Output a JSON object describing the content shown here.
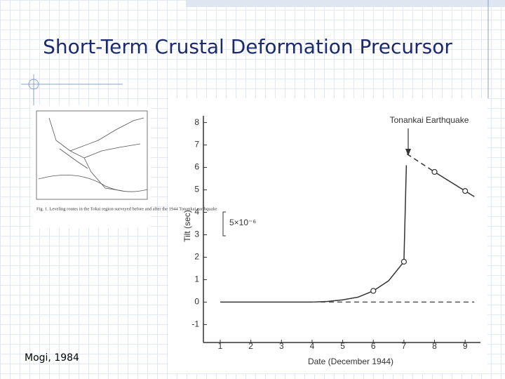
{
  "slide_title": "Short-Term Crustal Deformation Precursor",
  "citation": "Mogi, 1984",
  "inset_caption": "Fig. 1. Leveling routes in the Tokai region surveyed before and after the 1944 Tonankai earthquake",
  "chart_data": {
    "type": "line",
    "x_label": "Date (December 1944)",
    "y_label": "Tilt (sec)",
    "annotation": "Tonankai Earthquake",
    "scale_label": "5×10⁻⁶",
    "x": [
      1,
      3,
      4,
      4.5,
      5,
      5.5,
      6,
      6.5,
      7,
      7.08,
      7.1,
      8,
      9,
      9.3
    ],
    "series": [
      {
        "color": "#333333",
        "dashed": false,
        "marker": false,
        "values": [
          0,
          0,
          0,
          0.03,
          0.1,
          0.22,
          0.5,
          0.95,
          1.8,
          6.1,
          null,
          5.8,
          4.95,
          4.7
        ]
      },
      {
        "color": "#333333",
        "dashed": true,
        "marker": false,
        "values": [
          null,
          null,
          null,
          null,
          null,
          null,
          null,
          null,
          null,
          null,
          6.6,
          5.8,
          null,
          null
        ]
      },
      {
        "color": "#555555",
        "dashed": true,
        "marker": false,
        "values": [
          null,
          null,
          0,
          0,
          0,
          0,
          0,
          0,
          0,
          0,
          0,
          0,
          0,
          0
        ]
      },
      {
        "color": "#333333",
        "dashed": false,
        "marker": true,
        "values": [
          null,
          null,
          null,
          null,
          null,
          null,
          0.5,
          null,
          1.8,
          null,
          null,
          5.8,
          4.95,
          null
        ]
      }
    ],
    "xlim": [
      0.45,
      9.5
    ],
    "xticks": [
      1,
      2,
      3,
      4,
      5,
      6,
      7,
      8,
      9
    ],
    "ylim": [
      -1.8,
      8.3
    ],
    "yticks": [
      -1,
      0,
      1,
      2,
      3,
      4,
      5,
      6,
      7,
      8
    ],
    "grid": false
  }
}
